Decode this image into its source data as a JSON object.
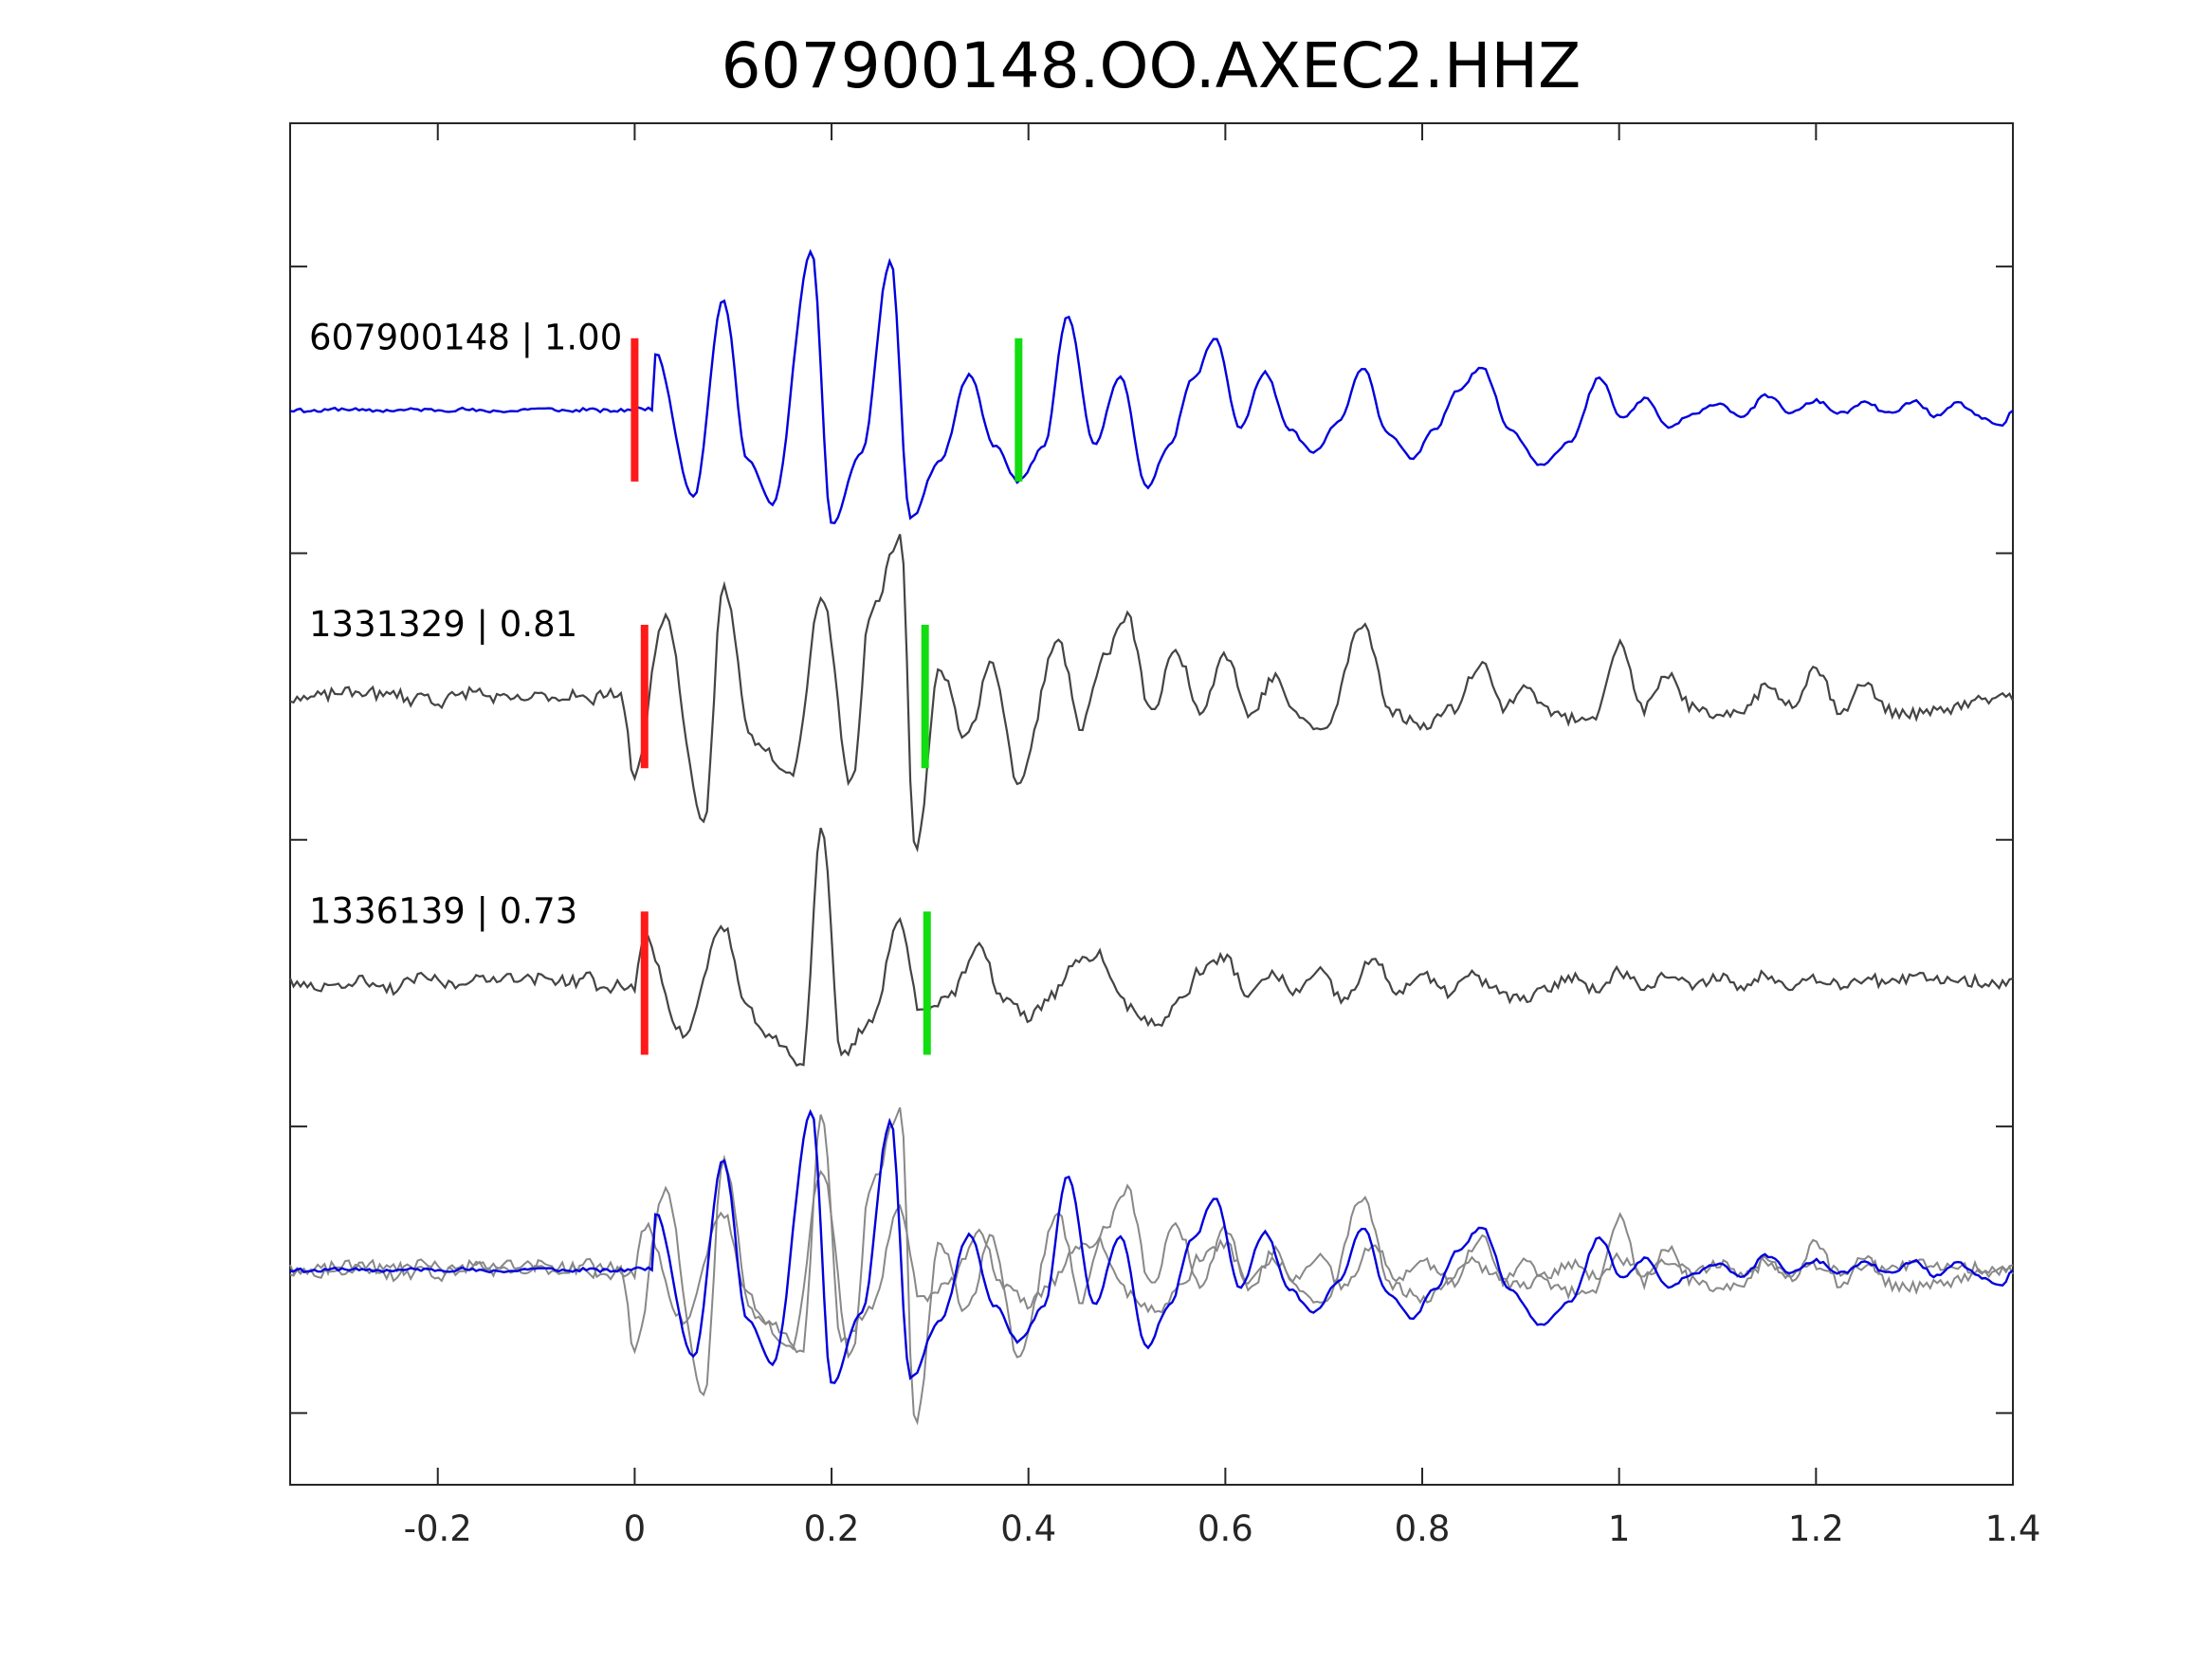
{
  "chart_data": {
    "type": "line",
    "title": "607900148.OO.AXEC2.HHZ",
    "xlabel": "",
    "ylabel": "",
    "xlim": [
      -0.35,
      1.4
    ],
    "xticks": [
      {
        "value": -0.2,
        "label": "-0.2"
      },
      {
        "value": 0,
        "label": "0"
      },
      {
        "value": 0.2,
        "label": "0.2"
      },
      {
        "value": 0.4,
        "label": "0.4"
      },
      {
        "value": 0.6,
        "label": "0.6"
      },
      {
        "value": 0.8,
        "label": "0.8"
      },
      {
        "value": 1,
        "label": "1"
      },
      {
        "value": 1.2,
        "label": "1.2"
      },
      {
        "value": 1.4,
        "label": "1.4"
      }
    ],
    "ylim": [
      0,
      4.75
    ],
    "yticks": [
      0.25,
      1.25,
      2.25,
      3.25,
      4.25
    ],
    "grid": false,
    "colors": {
      "reference": "#0000dd",
      "neighbor": "#444444",
      "overlay": "#888888",
      "p_pick": "#ff1a1a",
      "s_pick": "#11dd11",
      "axis": "#262626"
    },
    "traces": [
      {
        "label": "607900148 | 1.00",
        "baseline": 3.75,
        "color": "blue",
        "seed": 11,
        "p_pick": 0.0,
        "s_pick": 0.39,
        "peaks": [
          [
            0.02,
            0.2
          ],
          [
            0.06,
            -0.3
          ],
          [
            0.09,
            0.38
          ],
          [
            0.14,
            -0.33
          ],
          [
            0.18,
            0.55
          ],
          [
            0.2,
            -0.4
          ],
          [
            0.26,
            0.52
          ],
          [
            0.28,
            -0.38
          ],
          [
            0.34,
            0.12
          ],
          [
            0.39,
            -0.25
          ],
          [
            0.44,
            0.33
          ],
          [
            0.52,
            -0.27
          ],
          [
            0.59,
            0.25
          ],
          [
            0.69,
            -0.15
          ],
          [
            0.74,
            0.15
          ],
          [
            0.79,
            -0.17
          ],
          [
            0.86,
            0.15
          ],
          [
            0.92,
            -0.19
          ],
          [
            0.98,
            0.11
          ],
          [
            1.05,
            -0.06
          ],
          [
            1.15,
            0.05
          ],
          [
            1.3,
            0.03
          ],
          [
            1.39,
            -0.06
          ]
        ]
      },
      {
        "label": "1331329 | 0.81",
        "baseline": 2.75,
        "color": "dark",
        "seed": 23,
        "p_pick": 0.01,
        "s_pick": 0.295,
        "peaks": [
          [
            0.0,
            -0.28
          ],
          [
            0.03,
            0.28
          ],
          [
            0.07,
            -0.45
          ],
          [
            0.09,
            0.38
          ],
          [
            0.12,
            -0.15
          ],
          [
            0.16,
            -0.26
          ],
          [
            0.19,
            0.35
          ],
          [
            0.22,
            -0.3
          ],
          [
            0.24,
            0.3
          ],
          [
            0.27,
            0.55
          ],
          [
            0.285,
            -0.55
          ],
          [
            0.31,
            0.1
          ],
          [
            0.39,
            -0.3
          ],
          [
            0.43,
            0.2
          ],
          [
            0.5,
            0.28
          ],
          [
            0.6,
            0.15
          ],
          [
            0.7,
            -0.12
          ],
          [
            0.74,
            0.25
          ],
          [
            0.8,
            -0.1
          ],
          [
            0.86,
            0.12
          ],
          [
            0.95,
            -0.08
          ],
          [
            1.0,
            0.18
          ],
          [
            1.1,
            -0.08
          ],
          [
            1.2,
            0.1
          ],
          [
            1.3,
            -0.06
          ]
        ]
      },
      {
        "label": "1336139 | 0.73",
        "baseline": 1.75,
        "color": "dark",
        "seed": 37,
        "p_pick": 0.01,
        "s_pick": 0.297,
        "peaks": [
          [
            0.01,
            0.15
          ],
          [
            0.05,
            -0.18
          ],
          [
            0.09,
            0.2
          ],
          [
            0.14,
            -0.2
          ],
          [
            0.17,
            -0.28
          ],
          [
            0.19,
            0.55
          ],
          [
            0.21,
            -0.25
          ],
          [
            0.27,
            0.22
          ],
          [
            0.29,
            -0.1
          ],
          [
            0.35,
            0.12
          ],
          [
            0.4,
            -0.12
          ],
          [
            0.47,
            0.1
          ],
          [
            0.53,
            -0.15
          ],
          [
            0.6,
            0.09
          ],
          [
            0.72,
            -0.06
          ],
          [
            0.75,
            0.08
          ],
          [
            0.9,
            -0.06
          ],
          [
            1.0,
            0.04
          ],
          [
            1.15,
            0.03
          ],
          [
            1.3,
            0.02
          ]
        ]
      }
    ],
    "overlay_baseline": 0.75
  }
}
